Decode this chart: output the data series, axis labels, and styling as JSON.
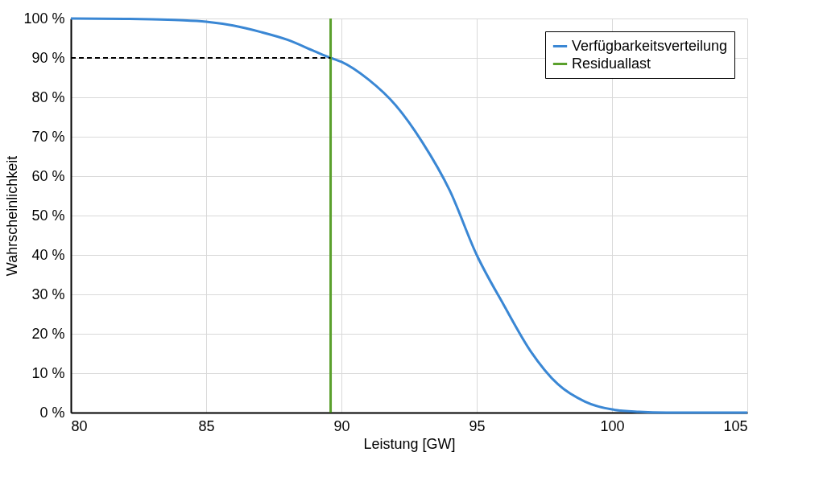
{
  "chart_data": {
    "type": "line",
    "xlabel": "Leistung [GW]",
    "ylabel": "Wahrscheinlichkeit",
    "xlim": [
      80,
      105
    ],
    "xticks": [
      80,
      85,
      90,
      95,
      100,
      105
    ],
    "ylim": [
      0,
      100
    ],
    "yticks": [
      {
        "value": 0,
        "label": "0 %"
      },
      {
        "value": 10,
        "label": "10 %"
      },
      {
        "value": 20,
        "label": "20 %"
      },
      {
        "value": 30,
        "label": "30 %"
      },
      {
        "value": 40,
        "label": "40 %"
      },
      {
        "value": 50,
        "label": "50 %"
      },
      {
        "value": 60,
        "label": "60 %"
      },
      {
        "value": 70,
        "label": "70 %"
      },
      {
        "value": 80,
        "label": "80 %"
      },
      {
        "value": 90,
        "label": "90 %"
      },
      {
        "value": 100,
        "label": "100 %"
      }
    ],
    "grid": true,
    "legend": "top right",
    "marker": "none",
    "series": [
      {
        "name": "Verfügbarkeitsverteilung",
        "color": "#3a87d4",
        "x": [
          80,
          82,
          83,
          84,
          85,
          86,
          87,
          88,
          89,
          89.6,
          90,
          91,
          92,
          93,
          94,
          95,
          96,
          97,
          98,
          99,
          100,
          101,
          102,
          103,
          105
        ],
        "values": [
          100,
          99.9,
          99.8,
          99.6,
          99.2,
          98.2,
          96.6,
          94.6,
          91.7,
          90,
          89,
          84.5,
          78,
          68.5,
          56.4,
          40,
          27.3,
          15.5,
          7.2,
          2.8,
          0.8,
          0.2,
          0,
          0,
          0
        ]
      },
      {
        "name": "Residuallast",
        "color": "#5aa02c",
        "x": [
          89.6,
          89.6
        ],
        "values": [
          0,
          100
        ]
      },
      {
        "color": "#000000",
        "line_style": "dashed",
        "x": [
          80,
          89.6
        ],
        "values": [
          90,
          90
        ]
      }
    ]
  }
}
